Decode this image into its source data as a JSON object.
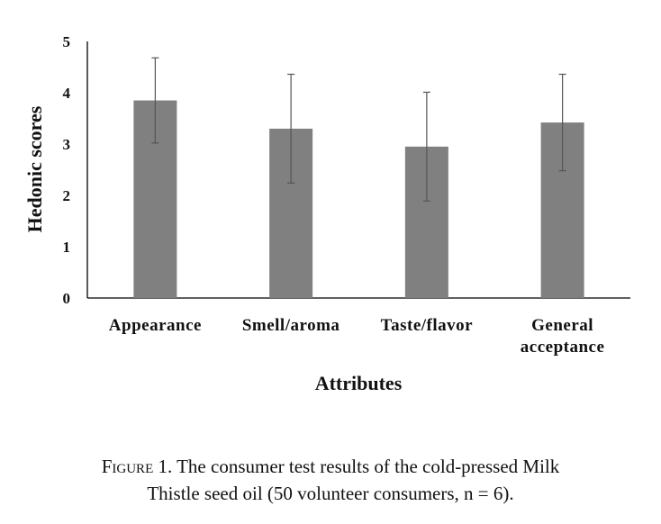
{
  "chart_data": {
    "type": "bar",
    "categories": [
      [
        "Appearance"
      ],
      [
        "Smell/aroma"
      ],
      [
        "Taste/flavor"
      ],
      [
        "General",
        "acceptance"
      ]
    ],
    "values": [
      3.85,
      3.3,
      2.95,
      3.42
    ],
    "errors": [
      0.83,
      1.06,
      1.06,
      0.94
    ],
    "xlabel": "Attributes",
    "ylabel": "Hedonic scores",
    "ylim": [
      0,
      5
    ],
    "yticks": [
      0,
      1,
      2,
      3,
      4,
      5
    ],
    "grid": false,
    "bar_color": "#808080"
  },
  "caption": {
    "lead": "Figure 1.",
    "text": " The consumer test results of the cold-pressed Milk",
    "line2": "Thistle seed oil (50 volunteer consumers, n = 6)."
  }
}
